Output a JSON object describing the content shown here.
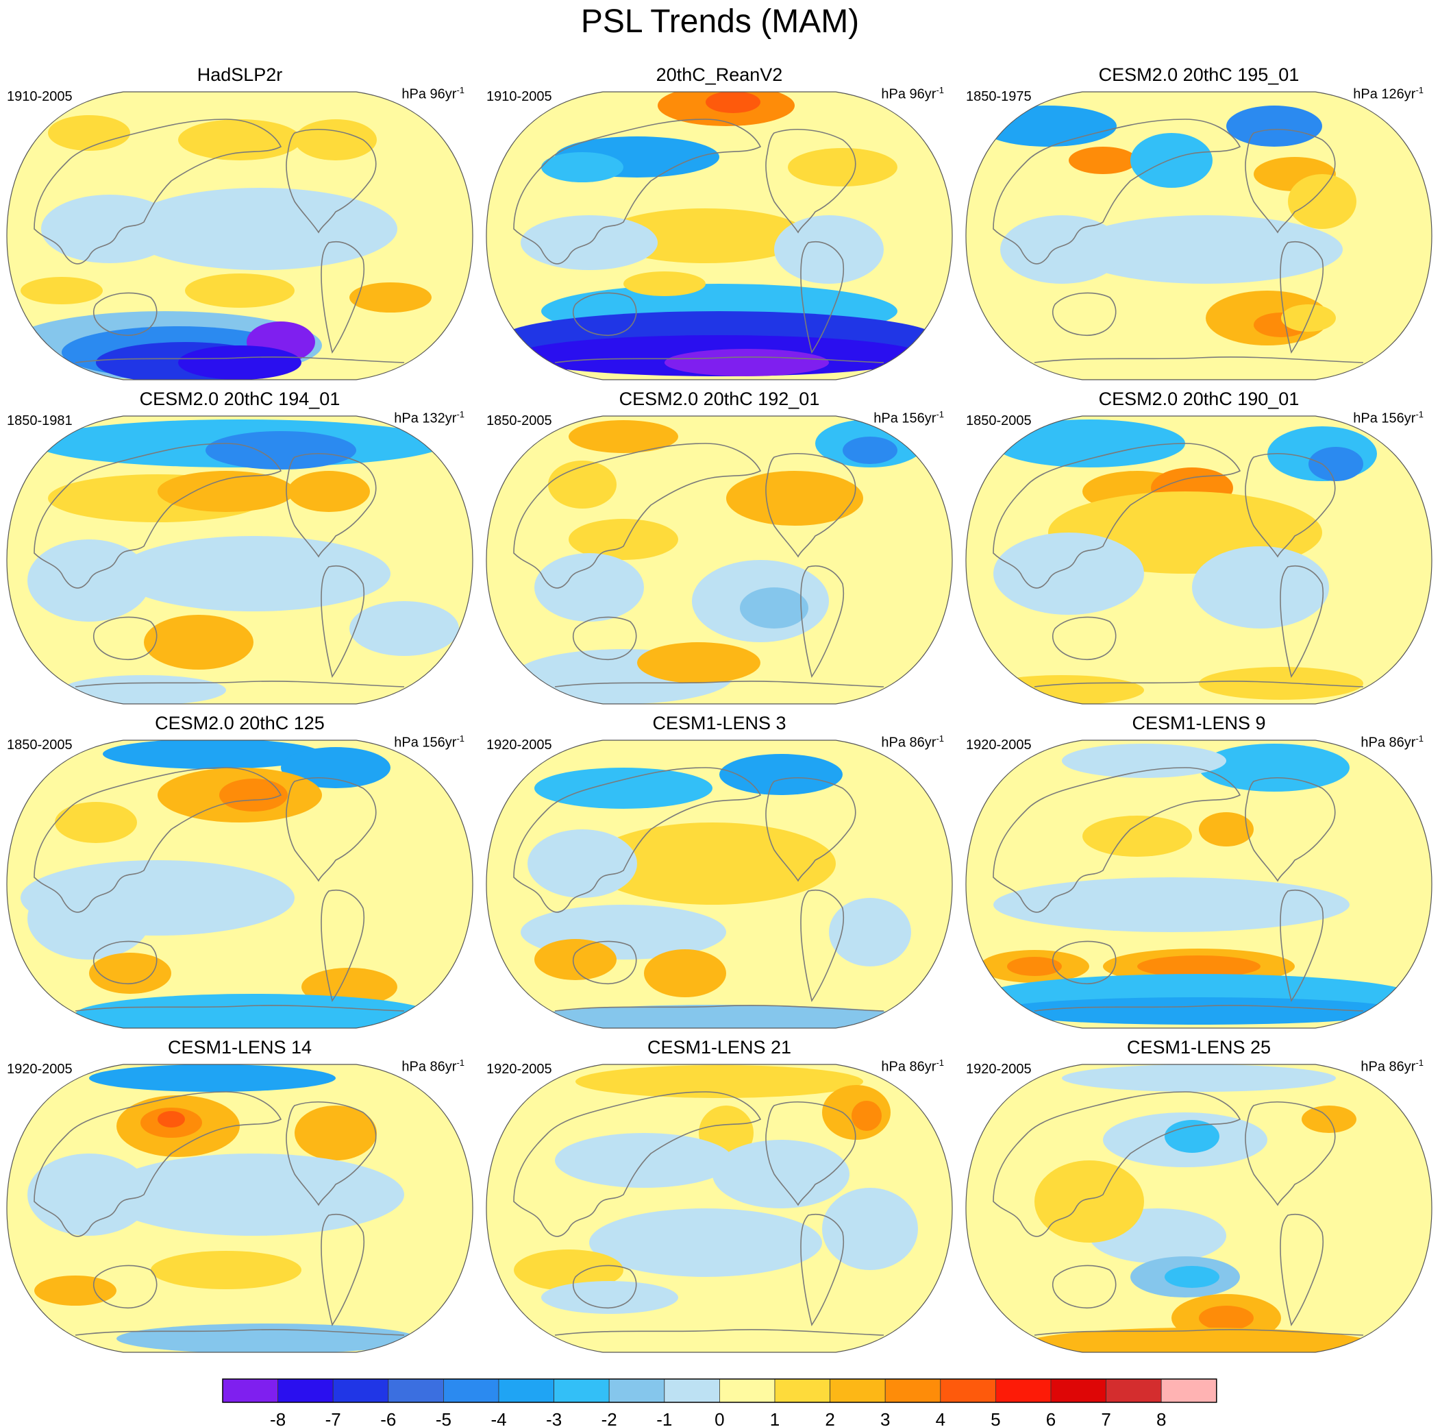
{
  "title": "PSL Trends (MAM)",
  "panels": [
    {
      "name": "HadSLP2r",
      "period": "1910-2005",
      "units": "hPa 96yr",
      "exp": "-1"
    },
    {
      "name": "20thC_ReanV2",
      "period": "1910-2005",
      "units": "hPa 96yr",
      "exp": "-1"
    },
    {
      "name": "CESM2.0 20thC 195_01",
      "period": "1850-1975",
      "units": "hPa 126yr",
      "exp": "-1"
    },
    {
      "name": "CESM2.0 20thC 194_01",
      "period": "1850-1981",
      "units": "hPa 132yr",
      "exp": "-1"
    },
    {
      "name": "CESM2.0 20thC 192_01",
      "period": "1850-2005",
      "units": "hPa 156yr",
      "exp": "-1"
    },
    {
      "name": "CESM2.0 20thC 190_01",
      "period": "1850-2005",
      "units": "hPa 156yr",
      "exp": "-1"
    },
    {
      "name": "CESM2.0 20thC 125",
      "period": "1850-2005",
      "units": "hPa 156yr",
      "exp": "-1"
    },
    {
      "name": "CESM1-LENS 3",
      "period": "1920-2005",
      "units": "hPa 86yr",
      "exp": "-1"
    },
    {
      "name": "CESM1-LENS 9",
      "period": "1920-2005",
      "units": "hPa 86yr",
      "exp": "-1"
    },
    {
      "name": "CESM1-LENS 14",
      "period": "1920-2005",
      "units": "hPa 86yr",
      "exp": "-1"
    },
    {
      "name": "CESM1-LENS 21",
      "period": "1920-2005",
      "units": "hPa 86yr",
      "exp": "-1"
    },
    {
      "name": "CESM1-LENS 25",
      "period": "1920-2005",
      "units": "hPa 86yr",
      "exp": "-1"
    }
  ],
  "colorbar": {
    "colors": [
      "#7f1fef",
      "#2a0fef",
      "#2036e6",
      "#3b6fe0",
      "#2b8af0",
      "#1fa4f4",
      "#33bff7",
      "#85c6ec",
      "#bde1f3",
      "#fffaa0",
      "#fedb3b",
      "#fdb716",
      "#fe8c09",
      "#fe5a0c",
      "#fd1b07",
      "#de0606",
      "#d42d2e",
      "#ffb3b3"
    ],
    "ticks": [
      "-8",
      "-7",
      "-6",
      "-5",
      "-4",
      "-3",
      "-2",
      "-1",
      "0",
      "1",
      "2",
      "3",
      "4",
      "5",
      "6",
      "7",
      "8"
    ]
  }
}
